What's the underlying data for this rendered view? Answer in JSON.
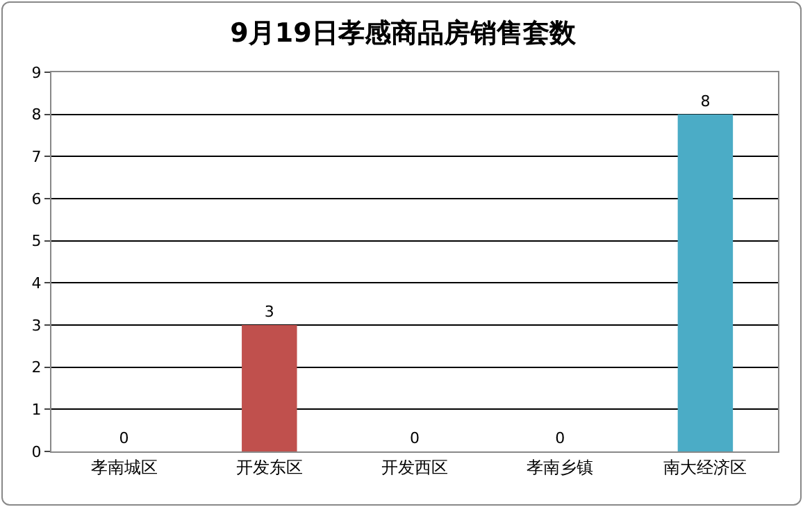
{
  "chart_data": {
    "type": "bar",
    "title": "9月19日孝感商品房销售套数",
    "categories": [
      "孝南城区",
      "开发东区",
      "开发西区",
      "孝南乡镇",
      "南大经济区"
    ],
    "values": [
      0,
      3,
      0,
      0,
      8
    ],
    "colors": [
      "#4f81bd",
      "#c0504d",
      "#9bbb59",
      "#8064a2",
      "#4bacc6"
    ],
    "ylim": [
      0,
      9
    ],
    "yticks": [
      0,
      1,
      2,
      3,
      4,
      5,
      6,
      7,
      8,
      9
    ],
    "grid": "y",
    "data_labels": true
  }
}
